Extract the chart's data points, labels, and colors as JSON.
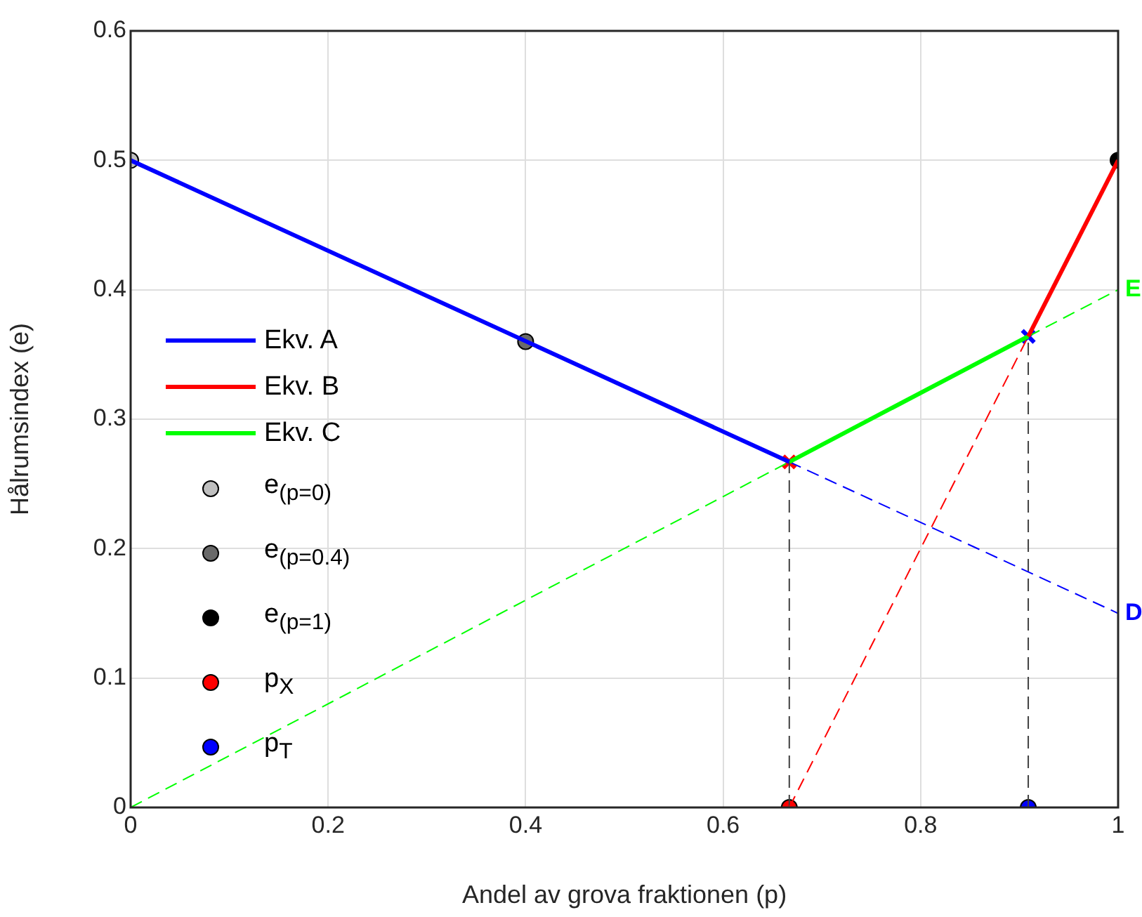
{
  "chart_data": {
    "type": "line",
    "xlabel": "Andel av grova fraktionen (p)",
    "ylabel": "Hålrumsindex (e)",
    "xlim": [
      0,
      1
    ],
    "xticks": [
      0,
      0.2,
      0.4,
      0.6,
      0.8,
      1
    ],
    "ylim": [
      0,
      0.6
    ],
    "yticks": [
      0,
      0.1,
      0.2,
      0.3,
      0.4,
      0.5,
      0.6
    ],
    "grid": true,
    "legend": "left",
    "annotations": [
      {
        "text": "E",
        "x": 1,
        "y": 0.4
      },
      {
        "text": "D",
        "x": 1,
        "y": 0.15
      }
    ],
    "series": [
      {
        "type": "line",
        "name": "Ekv. A",
        "color": "#0000ff",
        "x": [
          0,
          0.667
        ],
        "values": [
          0.5,
          0.267
        ],
        "line_style": "solid"
      },
      {
        "type": "line",
        "name": "Ekv. B",
        "color": "#ff0000",
        "x": [
          0.909,
          1
        ],
        "values": [
          0.364,
          0.5
        ],
        "line_style": "solid"
      },
      {
        "type": "line",
        "name": "Ekv. C",
        "color": "#00ff00",
        "x": [
          0.667,
          0.909
        ],
        "values": [
          0.267,
          0.364
        ],
        "line_style": "solid"
      },
      {
        "type": "line",
        "color": "#0000ff",
        "x": [
          0.667,
          1
        ],
        "values": [
          0.267,
          0.15
        ],
        "line_style": "dashed"
      },
      {
        "type": "line",
        "color": "#ff0000",
        "x": [
          0.667,
          0.909
        ],
        "values": [
          0,
          0.364
        ],
        "line_style": "dashed"
      },
      {
        "type": "line",
        "color": "#00ff00",
        "x": [
          0,
          0.667
        ],
        "values": [
          0,
          0.267
        ],
        "line_style": "dashed"
      },
      {
        "type": "line",
        "color": "#00ff00",
        "x": [
          0.909,
          1
        ],
        "values": [
          0.364,
          0.4
        ],
        "line_style": "dashed"
      },
      {
        "type": "line",
        "color": "#404040",
        "x": [
          0.667,
          0.667
        ],
        "values": [
          0,
          0.267
        ],
        "line_style": "dashed"
      },
      {
        "type": "line",
        "color": "#404040",
        "x": [
          0.909,
          0.909
        ],
        "values": [
          0,
          0.364
        ],
        "line_style": "dashed"
      },
      {
        "type": "scatter",
        "color": "#ff0000",
        "x": [
          0.667
        ],
        "values": [
          0.267
        ],
        "marker": "cross"
      },
      {
        "type": "scatter",
        "color": "#0000ff",
        "x": [
          0.909
        ],
        "values": [
          0.364
        ],
        "marker": "cross"
      },
      {
        "type": "scatter",
        "name": "e$_{(p=0)}$",
        "color": "#bfbfbf",
        "x": [
          0
        ],
        "values": [
          0.5
        ],
        "marker": "circle"
      },
      {
        "type": "scatter",
        "name": "e$_{(p=0.4)}$",
        "color": "#696969",
        "x": [
          0.4
        ],
        "values": [
          0.36
        ],
        "marker": "circle"
      },
      {
        "type": "scatter",
        "name": "e$_{(p=1)}$",
        "color": "#000000",
        "x": [
          1
        ],
        "values": [
          0.5
        ],
        "marker": "circle"
      },
      {
        "type": "scatter",
        "name": "p$_{X}$",
        "color": "#ff0000",
        "x": [
          0.667
        ],
        "values": [
          0
        ],
        "marker": "circle"
      },
      {
        "type": "scatter",
        "name": "p$_{T}$",
        "color": "#0000ff",
        "x": [
          0.909
        ],
        "values": [
          0
        ],
        "marker": "circle"
      }
    ]
  }
}
